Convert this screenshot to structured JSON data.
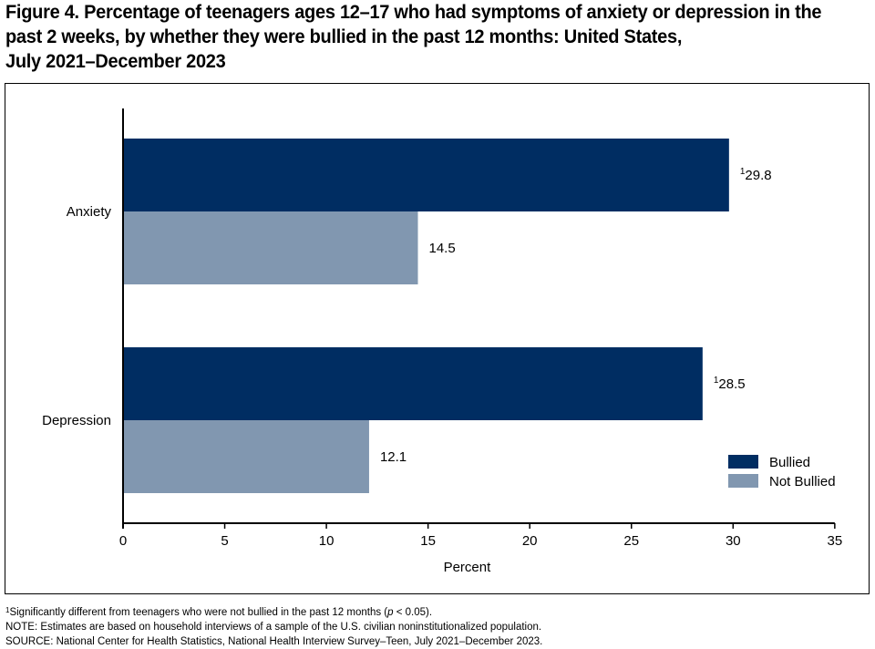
{
  "title_lines": [
    "Figure 4. Percentage of teenagers ages 12–17 who had symptoms of anxiety or depression in the",
    "past 2 weeks, by whether they were bullied in the past 12 months: United States,",
    "July 2021–December 2023"
  ],
  "colors": {
    "bullied": "#002d62",
    "not_bullied": "#8197b0"
  },
  "chart_data": {
    "type": "bar",
    "orientation": "horizontal",
    "categories": [
      "Anxiety",
      "Depression"
    ],
    "series": [
      {
        "name": "Bullied",
        "values": [
          29.8,
          28.5
        ],
        "labels": [
          "29.8",
          "28.5"
        ],
        "label_sup": "1"
      },
      {
        "name": "Not Bullied",
        "values": [
          14.5,
          12.1
        ],
        "labels": [
          "14.5",
          "12.1"
        ],
        "label_sup": ""
      }
    ],
    "xlabel": "Percent",
    "xlim": [
      0,
      35
    ],
    "xticks": [
      "0",
      "5",
      "10",
      "15",
      "20",
      "25",
      "30",
      "35"
    ],
    "grid": false,
    "legend_position": "bottom-right"
  },
  "footnotes": {
    "sig_sup": "1",
    "sig_pre": "Significantly different from teenagers who were not bullied in the past 12 months (",
    "sig_p": "p",
    "sig_post": " < 0.05).",
    "note": "NOTE: Estimates are based on household interviews of a sample of the U.S. civilian noninstitutionalized population.",
    "source": "SOURCE: National Center for Health Statistics, National Health Interview Survey–Teen, July 2021–December 2023."
  }
}
